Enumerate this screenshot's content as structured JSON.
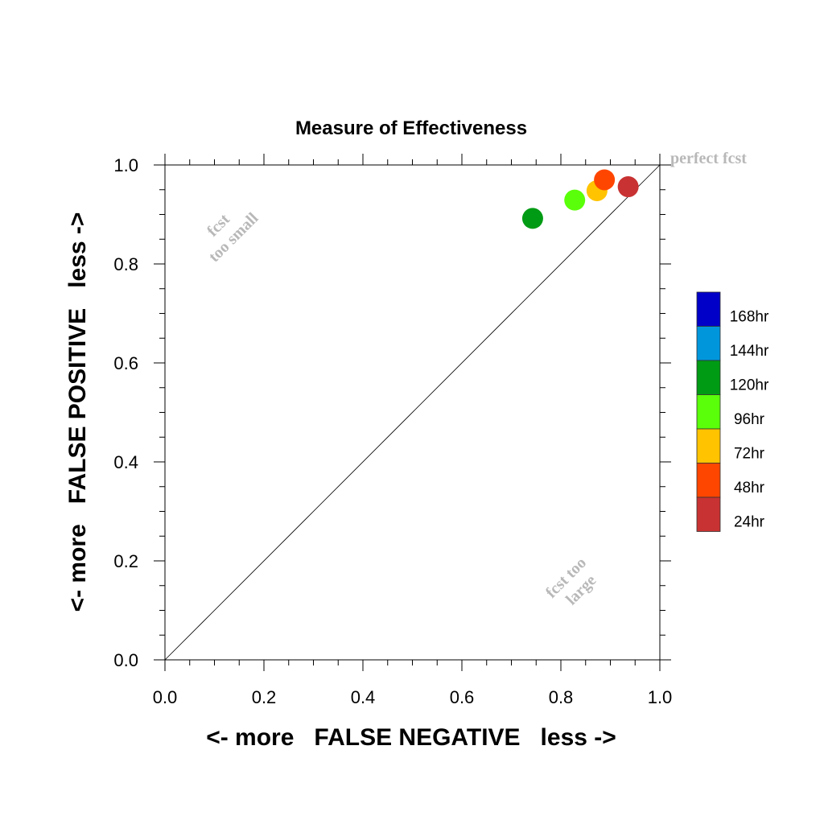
{
  "chart_data": {
    "type": "scatter",
    "title": "Measure of Effectiveness",
    "xlabel": "<- more   FALSE NEGATIVE   less ->",
    "ylabel": "<- more   FALSE POSITIVE   less ->",
    "xlim": [
      0.0,
      1.0
    ],
    "ylim": [
      0.0,
      1.0
    ],
    "xticks": [
      "0.0",
      "0.2",
      "0.4",
      "0.6",
      "0.8",
      "1.0"
    ],
    "yticks": [
      "0.0",
      "0.2",
      "0.4",
      "0.6",
      "0.8",
      "1.0"
    ],
    "grid": false,
    "diagonal_line": true,
    "annotations": {
      "perfect": "perfect fcst",
      "too_small_line1": "fcst",
      "too_small_line2": "too small",
      "too_large_line1": "fcst too",
      "too_large_line2": "large"
    },
    "legend_position": "right",
    "legend": [
      {
        "label": "168hr",
        "color": "#0000c8"
      },
      {
        "label": "144hr",
        "color": "#0096dc"
      },
      {
        "label": "120hr",
        "color": "#009b14"
      },
      {
        "label": "96hr",
        "color": "#5aff0a"
      },
      {
        "label": "72hr",
        "color": "#ffc300"
      },
      {
        "label": "48hr",
        "color": "#ff4600"
      },
      {
        "label": "24hr",
        "color": "#c83232"
      }
    ],
    "points": [
      {
        "series": "120hr",
        "x": 0.743,
        "y": 0.892,
        "color": "#009b14"
      },
      {
        "series": "96hr",
        "x": 0.828,
        "y": 0.929,
        "color": "#5aff0a"
      },
      {
        "series": "72hr",
        "x": 0.873,
        "y": 0.948,
        "color": "#ffc300"
      },
      {
        "series": "48hr",
        "x": 0.888,
        "y": 0.97,
        "color": "#ff4600"
      },
      {
        "series": "24hr",
        "x": 0.936,
        "y": 0.956,
        "color": "#c83232"
      }
    ]
  }
}
